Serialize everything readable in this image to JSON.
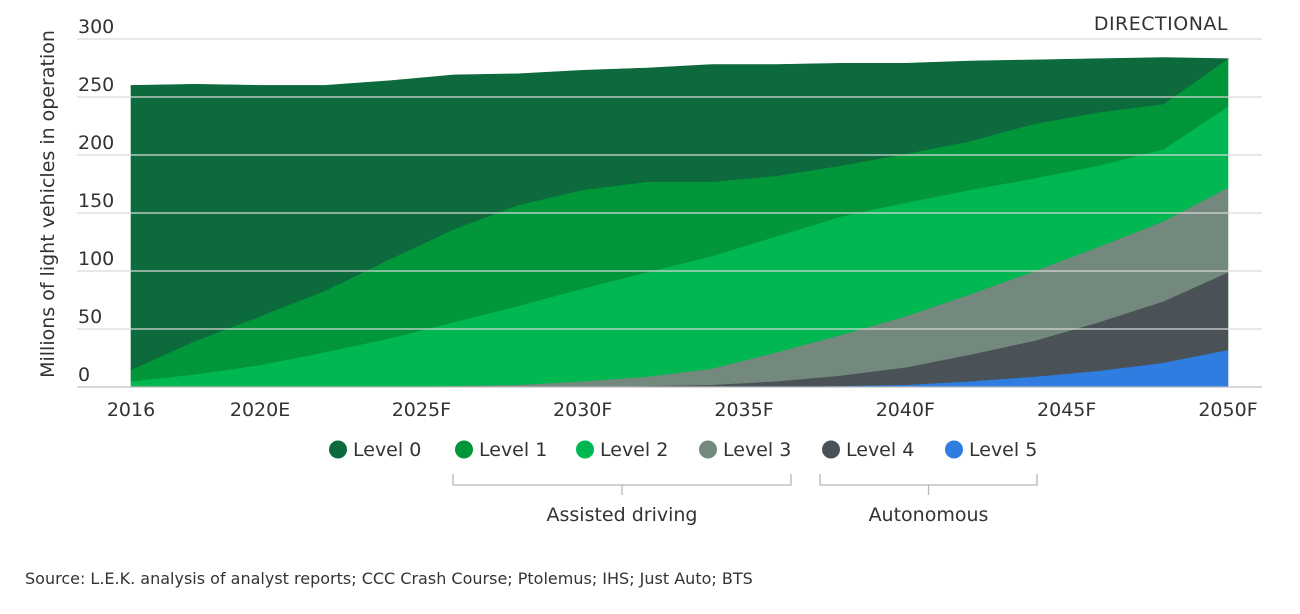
{
  "chart_data": {
    "type": "area",
    "stacked": true,
    "tag": "DIRECTIONAL",
    "ylabel": "Millions of light vehicles in operation",
    "ylim": [
      0,
      300
    ],
    "yticks": [
      0,
      50,
      100,
      150,
      200,
      250,
      300
    ],
    "x_tick_labels": [
      "2016",
      "2020E",
      "2025F",
      "2030F",
      "2035F",
      "2040F",
      "2045F",
      "2050F"
    ],
    "x_tick_years": [
      2016,
      2020,
      2025,
      2030,
      2035,
      2040,
      2045,
      2050
    ],
    "x": [
      2016,
      2018,
      2020,
      2022,
      2024,
      2026,
      2028,
      2030,
      2032,
      2034,
      2036,
      2038,
      2040,
      2042,
      2044,
      2046,
      2048,
      2050
    ],
    "series": [
      {
        "name": "Level 5",
        "color": "#2f7de1",
        "values": [
          0,
          0,
          0,
          0,
          0,
          0,
          0,
          0,
          0,
          0,
          0,
          1,
          2,
          5,
          9,
          14,
          21,
          32
        ]
      },
      {
        "name": "Level 4",
        "color": "#4a5257",
        "values": [
          0,
          0,
          0,
          0,
          0,
          0,
          0,
          0,
          1,
          2,
          5,
          9,
          15,
          23,
          31,
          42,
          53,
          67
        ]
      },
      {
        "name": "Level 3",
        "color": "#73897d",
        "values": [
          0,
          0,
          0,
          0,
          0,
          1,
          2,
          5,
          8,
          14,
          25,
          35,
          44,
          52,
          60,
          65,
          69,
          73
        ]
      },
      {
        "name": "Level 2",
        "color": "#00b751",
        "values": [
          5,
          11,
          19,
          30,
          42,
          55,
          68,
          80,
          90,
          97,
          100,
          102,
          98,
          90,
          80,
          70,
          62,
          70
        ]
      },
      {
        "name": "Level 1",
        "color": "#009639",
        "values": [
          10,
          29,
          42,
          53,
          68,
          80,
          87,
          85,
          78,
          64,
          52,
          44,
          42,
          42,
          47,
          46,
          39,
          41
        ]
      },
      {
        "name": "Level 0",
        "color": "#0c6a3c",
        "values": [
          245,
          221,
          199,
          177,
          154,
          133,
          113,
          103,
          98,
          101,
          96,
          88,
          78,
          69,
          55,
          46,
          40,
          0
        ]
      }
    ],
    "legend": [
      {
        "label": "Level 0",
        "color": "#0c6a3c"
      },
      {
        "label": "Level 1",
        "color": "#009639"
      },
      {
        "label": "Level 2",
        "color": "#00b751"
      },
      {
        "label": "Level 3",
        "color": "#73897d"
      },
      {
        "label": "Level 4",
        "color": "#4a5257"
      },
      {
        "label": "Level 5",
        "color": "#2f7de1"
      }
    ],
    "groups": [
      {
        "label": "Assisted driving",
        "members": [
          "Level 1",
          "Level 2",
          "Level 3"
        ]
      },
      {
        "label": "Autonomous",
        "members": [
          "Level 4",
          "Level 5"
        ]
      }
    ],
    "source": "Source: L.E.K. analysis of analyst reports; CCC Crash Course; Ptolemus; IHS; Just Auto; BTS"
  }
}
